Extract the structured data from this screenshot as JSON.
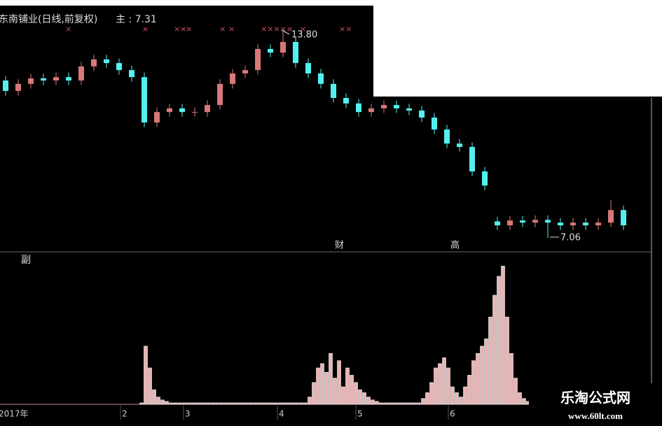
{
  "header": {
    "title": "东南铺业(日线,前复权)",
    "main_label": "主 : 7.31"
  },
  "chart_data": [
    {
      "type": "candlestick",
      "up_color": "#d87878",
      "down_color": "#54f0f0",
      "ylim": [
        6.72,
        14.6
      ],
      "open": [
        12.2,
        11.86,
        12.09,
        12.27,
        12.2,
        12.31,
        12.2,
        12.66,
        12.89,
        12.77,
        12.54,
        12.31,
        10.83,
        11.17,
        11.29,
        11.17,
        11.17,
        11.4,
        12.09,
        12.43,
        12.54,
        13.23,
        13.11,
        13.46,
        12.77,
        12.43,
        12.09,
        11.63,
        11.45,
        11.17,
        11.29,
        11.4,
        11.29,
        11.22,
        10.99,
        10.6,
        10.14,
        10.03,
        9.23,
        7.6,
        7.47,
        7.63,
        7.56,
        7.65,
        7.56,
        7.47,
        7.56,
        7.47,
        7.56,
        7.97
      ],
      "high": [
        12.35,
        12.24,
        12.42,
        12.42,
        12.46,
        12.46,
        12.81,
        13.04,
        13.04,
        12.92,
        12.69,
        12.46,
        11.32,
        11.44,
        11.44,
        11.32,
        11.55,
        12.24,
        12.58,
        12.69,
        13.38,
        13.38,
        13.8,
        13.61,
        12.92,
        12.58,
        12.24,
        11.78,
        11.6,
        11.44,
        11.55,
        11.55,
        11.44,
        11.37,
        11.14,
        10.75,
        10.29,
        10.18,
        9.38,
        7.75,
        7.78,
        7.78,
        7.8,
        7.8,
        7.71,
        7.71,
        7.71,
        7.71,
        8.3,
        8.12
      ],
      "low": [
        11.71,
        11.71,
        11.94,
        12.05,
        12.05,
        12.05,
        12.05,
        12.51,
        12.62,
        12.39,
        12.16,
        10.68,
        10.68,
        11.02,
        11.02,
        11.02,
        11.02,
        11.25,
        11.94,
        12.28,
        12.39,
        12.96,
        12.96,
        12.62,
        12.28,
        11.94,
        11.48,
        11.3,
        11.02,
        11.02,
        11.14,
        11.14,
        11.07,
        10.84,
        10.45,
        9.99,
        9.88,
        9.08,
        8.62,
        7.32,
        7.32,
        7.41,
        7.41,
        7.06,
        7.32,
        7.32,
        7.32,
        7.32,
        7.41,
        7.32
      ],
      "close": [
        11.86,
        12.09,
        12.27,
        12.2,
        12.31,
        12.2,
        12.66,
        12.89,
        12.77,
        12.54,
        12.31,
        10.83,
        11.17,
        11.29,
        11.17,
        11.17,
        11.4,
        12.09,
        12.43,
        12.54,
        13.23,
        13.11,
        13.46,
        12.77,
        12.43,
        12.09,
        11.63,
        11.45,
        11.17,
        11.29,
        11.4,
        11.29,
        11.22,
        10.99,
        10.6,
        10.14,
        10.03,
        9.23,
        8.77,
        7.47,
        7.63,
        7.56,
        7.65,
        7.56,
        7.47,
        7.56,
        7.47,
        7.56,
        7.97,
        7.47
      ],
      "annotations": [
        "13.80",
        "7.06",
        "财",
        "高"
      ]
    },
    {
      "type": "bar",
      "title": "副",
      "color": "#e8b4b4",
      "ylim": [
        0,
        100
      ],
      "values": [
        1,
        40,
        25,
        10,
        5,
        3,
        2,
        1,
        1,
        1,
        1,
        1,
        1,
        1,
        1,
        1,
        1,
        1,
        1,
        1,
        1,
        1,
        1,
        1,
        1,
        1,
        1,
        1,
        1,
        1,
        1,
        1,
        1,
        1,
        1,
        1,
        1,
        1,
        1,
        1,
        5,
        15,
        25,
        28,
        22,
        35,
        18,
        30,
        12,
        25,
        20,
        15,
        10,
        8,
        5,
        3,
        2,
        1,
        1,
        1,
        1,
        1,
        1,
        1,
        1,
        1,
        1,
        4,
        8,
        15,
        25,
        28,
        32,
        25,
        12,
        8,
        5,
        12,
        20,
        30,
        35,
        40,
        45,
        60,
        75,
        88,
        95,
        60,
        35,
        18,
        8,
        4,
        2
      ],
      "x_labels": [
        "2017年",
        "2",
        "3",
        "4",
        "5",
        "6"
      ]
    }
  ],
  "watermark": {
    "name": "乐淘公式网",
    "url": "www.60lt.com"
  }
}
